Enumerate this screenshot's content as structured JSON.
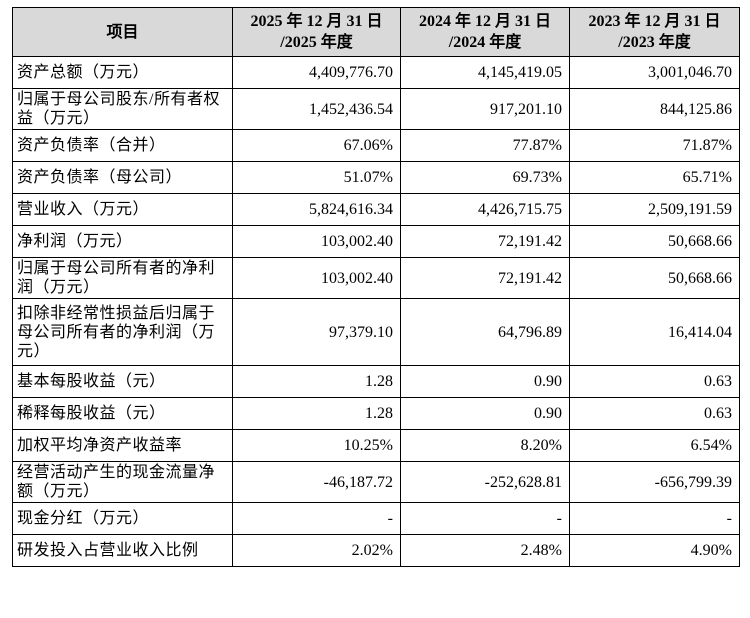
{
  "table": {
    "header": {
      "item": "项目",
      "col1": {
        "line1": "2025 年 12 月 31 日",
        "line2": "/2025 年度"
      },
      "col2": {
        "line1": "2024 年 12 月 31 日",
        "line2": "/2024 年度"
      },
      "col3": {
        "line1": "2023 年 12 月 31 日",
        "line2": "/2023 年度"
      }
    },
    "rows": [
      {
        "label": "资产总额（万元）",
        "values": [
          "4,409,776.70",
          "4,145,419.05",
          "3,001,046.70"
        ]
      },
      {
        "label": "归属于母公司股东/所有者权益（万元）",
        "values": [
          "1,452,436.54",
          "917,201.10",
          "844,125.86"
        ]
      },
      {
        "label": "资产负债率（合并）",
        "values": [
          "67.06%",
          "77.87%",
          "71.87%"
        ]
      },
      {
        "label": "资产负债率（母公司）",
        "values": [
          "51.07%",
          "69.73%",
          "65.71%"
        ]
      },
      {
        "label": "营业收入（万元）",
        "values": [
          "5,824,616.34",
          "4,426,715.75",
          "2,509,191.59"
        ]
      },
      {
        "label": "净利润（万元）",
        "values": [
          "103,002.40",
          "72,191.42",
          "50,668.66"
        ]
      },
      {
        "label": "归属于母公司所有者的净利润（万元）",
        "values": [
          "103,002.40",
          "72,191.42",
          "50,668.66"
        ]
      },
      {
        "label": "扣除非经常性损益后归属于母公司所有者的净利润（万元）",
        "values": [
          "97,379.10",
          "64,796.89",
          "16,414.04"
        ]
      },
      {
        "label": "基本每股收益（元）",
        "values": [
          "1.28",
          "0.90",
          "0.63"
        ]
      },
      {
        "label": "稀释每股收益（元）",
        "values": [
          "1.28",
          "0.90",
          "0.63"
        ]
      },
      {
        "label": "加权平均净资产收益率",
        "values": [
          "10.25%",
          "8.20%",
          "6.54%"
        ]
      },
      {
        "label": "经营活动产生的现金流量净额（万元）",
        "values": [
          "-46,187.72",
          "-252,628.81",
          "-656,799.39"
        ]
      },
      {
        "label": "现金分红（万元）",
        "values": [
          "-",
          "-",
          "-"
        ]
      },
      {
        "label": "研发投入占营业收入比例",
        "values": [
          "2.02%",
          "2.48%",
          "4.90%"
        ]
      }
    ]
  }
}
